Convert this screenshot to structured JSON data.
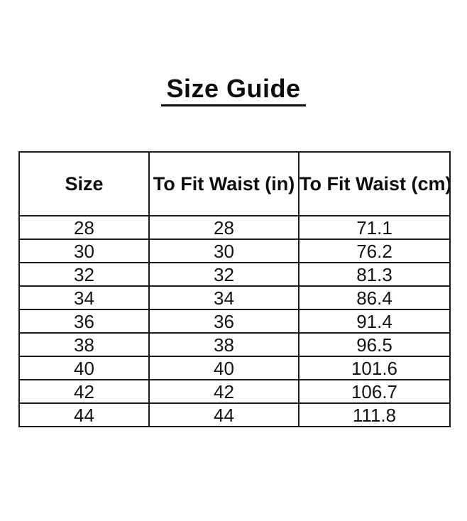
{
  "page": {
    "background": "#ffffff"
  },
  "title": {
    "text": "Size Guide"
  },
  "colors": {
    "text": "#141414",
    "title": "#0d0d0d",
    "border": "#1c1c1c",
    "background": "#ffffff"
  },
  "table": {
    "headers": [
      "Size",
      "To Fit Waist (in)",
      "To Fit Waist (cm)"
    ],
    "rows": [
      [
        "28",
        "28",
        "71.1"
      ],
      [
        "30",
        "30",
        "76.2"
      ],
      [
        "32",
        "32",
        "81.3"
      ],
      [
        "34",
        "34",
        "86.4"
      ],
      [
        "36",
        "36",
        "91.4"
      ],
      [
        "38",
        "38",
        "96.5"
      ],
      [
        "40",
        "40",
        "101.6"
      ],
      [
        "42",
        "42",
        "106.7"
      ],
      [
        "44",
        "44",
        "111.8"
      ]
    ]
  }
}
